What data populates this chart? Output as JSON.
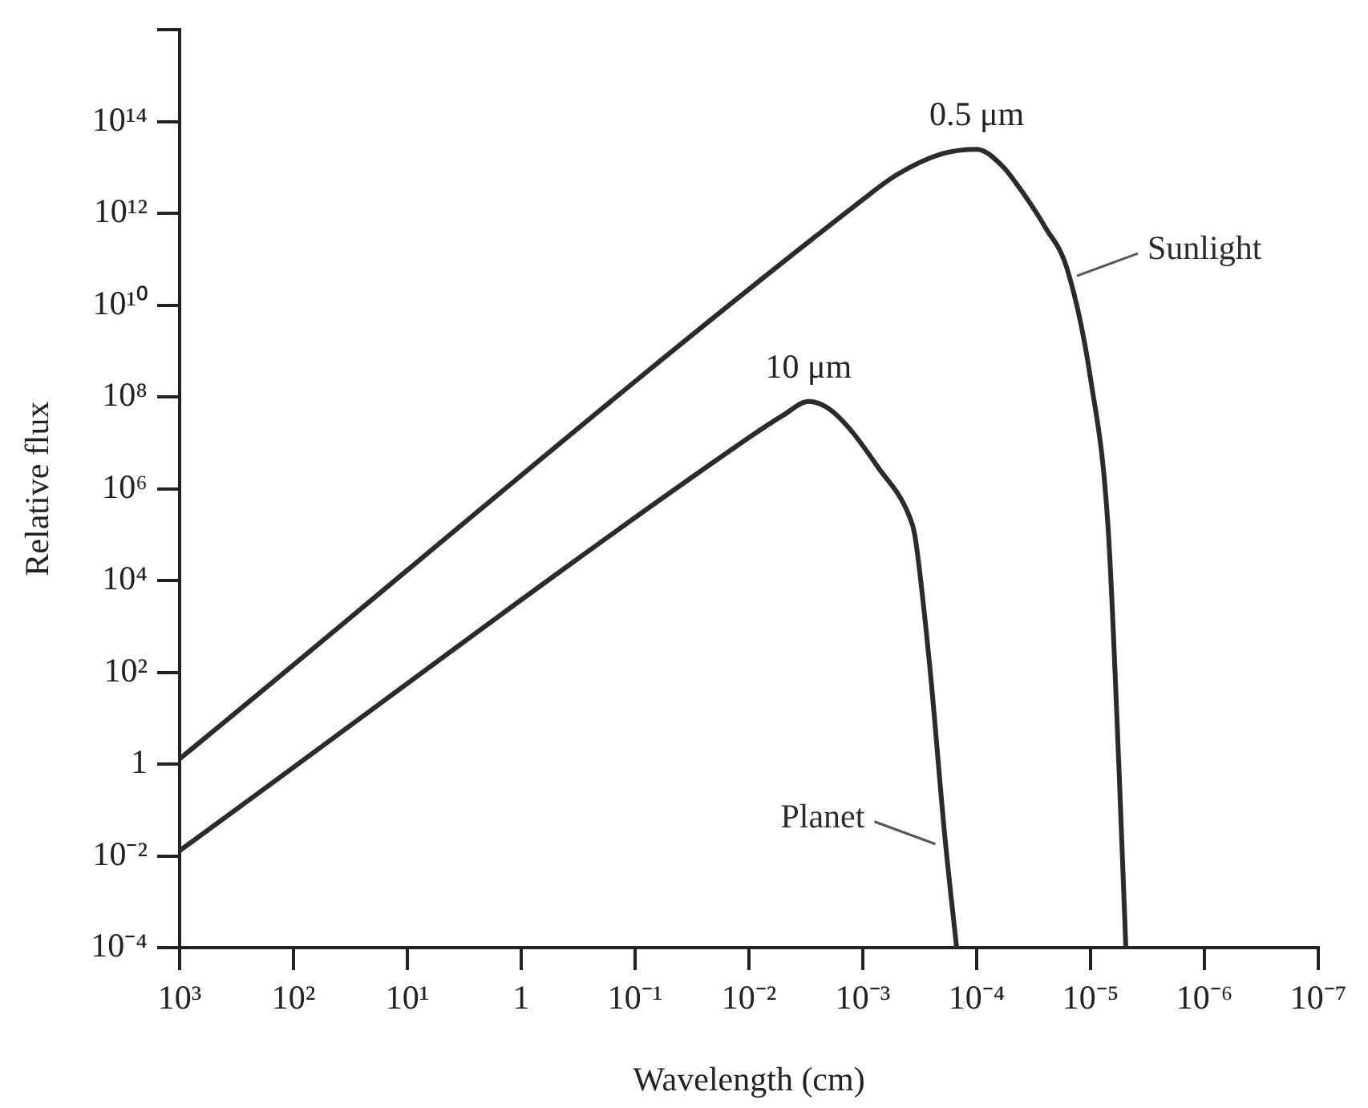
{
  "chart_data": {
    "type": "line",
    "xlabel": "Wavelength (cm)",
    "ylabel": "Relative flux",
    "log": "xy",
    "legend": false,
    "grid": false,
    "marker": "none",
    "line_style": "solid",
    "xlim": [
      1000,
      1e-07
    ],
    "xticks": [
      {
        "value": 1000,
        "label": "10³"
      },
      {
        "value": 100,
        "label": "10²"
      },
      {
        "value": 10,
        "label": "10¹"
      },
      1,
      {
        "value": 0.1,
        "label": "10⁻¹"
      },
      {
        "value": 0.01,
        "label": "10⁻²"
      },
      {
        "value": 0.001,
        "label": "10⁻³"
      },
      {
        "value": 0.0001,
        "label": "10⁻⁴"
      },
      {
        "value": 1e-05,
        "label": "10⁻⁵"
      },
      {
        "value": 1e-06,
        "label": "10⁻⁶"
      },
      {
        "value": 1e-07,
        "label": "10⁻⁷"
      }
    ],
    "ylim": [
      0.0001,
      1e+16
    ],
    "yticks": [
      {
        "value": 0.0001,
        "label": "10⁻⁴"
      },
      {
        "value": 0.01,
        "label": "10⁻²"
      },
      1,
      {
        "value": 100,
        "label": "10²"
      },
      {
        "value": 10000.0,
        "label": "10⁴"
      },
      {
        "value": 1000000.0,
        "label": "10⁶"
      },
      {
        "value": 100000000.0,
        "label": "10⁸"
      },
      {
        "value": 10000000000.0,
        "label": "10¹⁰"
      },
      {
        "value": 1000000000000.0,
        "label": "10¹²"
      },
      {
        "value": 100000000000000.0,
        "label": "10¹⁴"
      },
      {
        "value": 1e+16,
        "label": null
      }
    ],
    "series": [
      {
        "name": "Sunlight",
        "color": "#2b2b2b",
        "x": [
          1000,
          0.001,
          0.0005,
          0.0002,
          0.0001,
          6e-05,
          4e-05,
          2.5e-05,
          1.6e-05,
          1e-05,
          7e-06,
          5.6e-06,
          4.9e-06
        ],
        "values": [
          1.3,
          2000000000000.0,
          7000000000000.0,
          20000000000000.0,
          25000000000000.0,
          11000000000000.0,
          3000000000000.0,
          500000000000.0,
          60000000000.0,
          250000000.0,
          130000.0,
          0.6,
          0.0001
        ]
      },
      {
        "name": "Planet",
        "color": "#2b2b2b",
        "x": [
          1000,
          0.01,
          0.005,
          0.003,
          0.002,
          0.0013,
          0.00074,
          0.00039,
          0.00035,
          0.00026,
          0.00019,
          0.00015
        ],
        "values": [
          0.013,
          13000000.0,
          40000000.0,
          80000000.0,
          56000000.0,
          20000000.0,
          3000000.0,
          250000.0,
          100000.0,
          160,
          0.025,
          0.0001
        ]
      }
    ],
    "annotations": [
      {
        "text": "0.5 μm",
        "x": 0.0001,
        "y": 25000000000000.0
      },
      {
        "text": "10 μm",
        "x": 0.003,
        "y": 80000000.0
      }
    ]
  }
}
